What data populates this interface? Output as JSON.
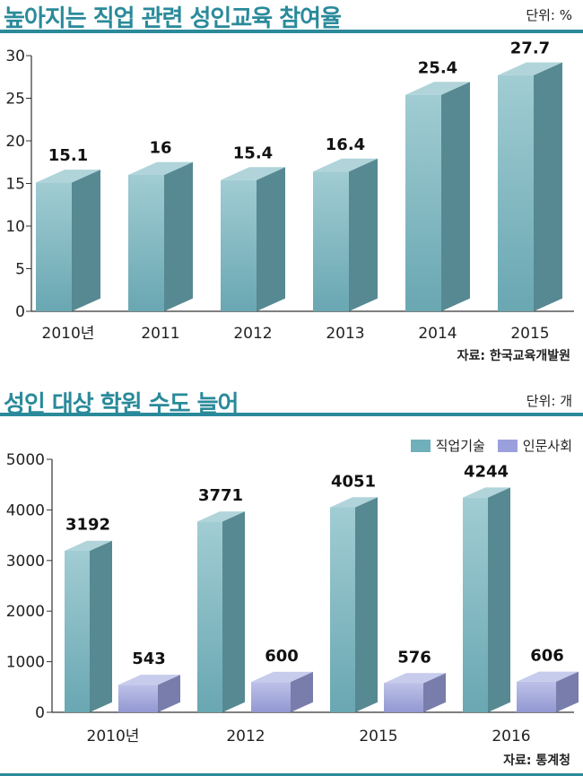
{
  "chart1": {
    "title": "높아지는 직업 관련 성인교육 참여율",
    "unit": "단위: %",
    "source": "자료: 한국교육개발원"
  },
  "chart2": {
    "title": "성인 대상 학원 수도 늘어",
    "unit": "단위: 개",
    "source": "자료: 통계청"
  },
  "colors": {
    "accent": "#2a8a9a",
    "series1_front": "#6fb0bb",
    "series2_front": "#9aa0dc"
  },
  "chart_data": [
    {
      "type": "bar",
      "title": "높아지는 직업 관련 성인교육 참여율",
      "categories": [
        "2010년",
        "2011",
        "2012",
        "2013",
        "2014",
        "2015"
      ],
      "values": [
        15.1,
        16,
        15.4,
        16.4,
        25.4,
        27.7
      ],
      "value_labels": [
        "15.1",
        "16",
        "15.4",
        "16.4",
        "25.4",
        "27.7"
      ],
      "yticks": [
        "0",
        "5",
        "10",
        "15",
        "20",
        "25",
        "30"
      ],
      "ylim": [
        0,
        30
      ],
      "grid": false
    },
    {
      "type": "bar",
      "title": "성인 대상 학원 수도 늘어",
      "categories": [
        "2010년",
        "2012",
        "2015",
        "2016"
      ],
      "series": [
        {
          "name": "직업기술",
          "values": [
            3192,
            3771,
            4051,
            4244
          ],
          "value_labels": [
            "3192",
            "3771",
            "4051",
            "4244"
          ]
        },
        {
          "name": "인문사회",
          "values": [
            543,
            600,
            576,
            606
          ],
          "value_labels": [
            "543",
            "600",
            "576",
            "606"
          ]
        }
      ],
      "yticks": [
        "0",
        "1000",
        "2000",
        "3000",
        "4000",
        "5000"
      ],
      "ylim": [
        0,
        5000
      ],
      "legend": "top-right",
      "grid": false
    }
  ]
}
